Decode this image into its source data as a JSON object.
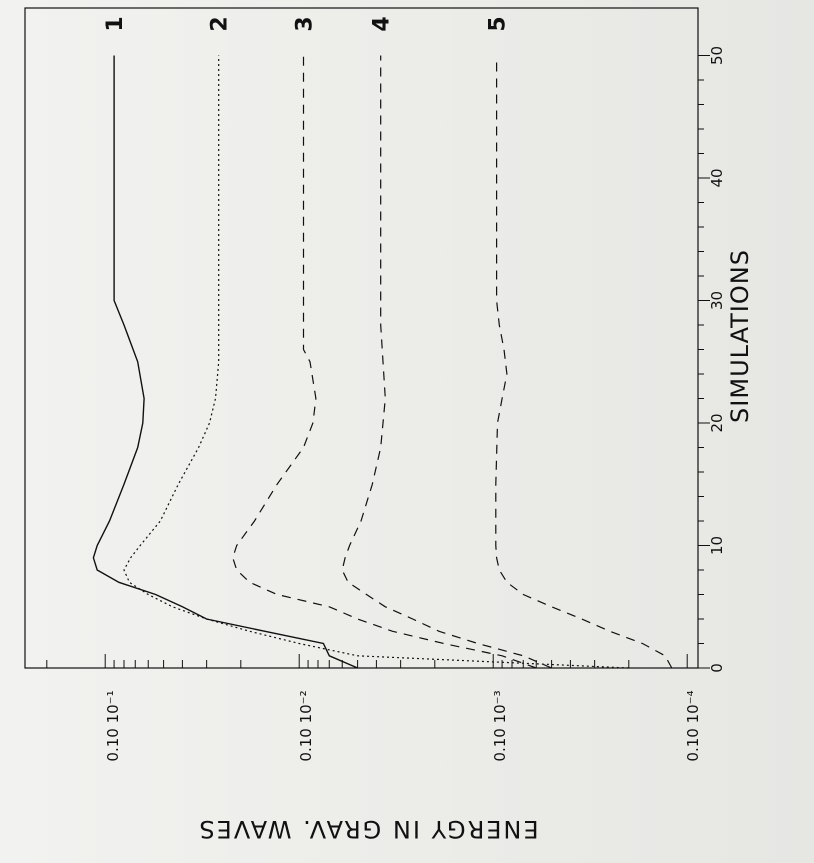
{
  "chart_data": {
    "type": "line",
    "xlabel": "SIMULATIONS",
    "ylabel": "ENERGY IN GRAV. WAVES",
    "xlim": [
      0,
      53
    ],
    "ylim": [
      0.0001,
      0.2
    ],
    "yscale": "log",
    "x_ticks": [
      "0",
      "10",
      "20",
      "30",
      "40",
      "50"
    ],
    "y_ticks": [
      "0.10 10⁻¹",
      "0.10 10⁻²",
      "0.10 10⁻³",
      "0.10 10⁻⁴"
    ],
    "grid": false,
    "orientation": "rotated 90° clockwise",
    "series": [
      {
        "name": "1",
        "style": "solid",
        "x": [
          0,
          1,
          2,
          3,
          4,
          5,
          6,
          7,
          8,
          9,
          10,
          12,
          15,
          18,
          20,
          22,
          25,
          28,
          30,
          50
        ],
        "y": [
          0.005,
          0.007,
          0.0075,
          0.015,
          0.03,
          0.04,
          0.055,
          0.085,
          0.11,
          0.115,
          0.11,
          0.095,
          0.08,
          0.068,
          0.064,
          0.063,
          0.068,
          0.08,
          0.09,
          0.09
        ]
      },
      {
        "name": "2",
        "style": "dotted",
        "x": [
          0,
          1,
          2,
          3,
          4,
          5,
          6,
          7,
          8,
          9,
          10,
          12,
          15,
          18,
          20,
          22,
          25,
          30,
          50
        ],
        "y": [
          0.0002,
          0.005,
          0.01,
          0.018,
          0.03,
          0.045,
          0.06,
          0.075,
          0.08,
          0.074,
          0.066,
          0.052,
          0.042,
          0.033,
          0.029,
          0.027,
          0.026,
          0.026,
          0.026
        ]
      },
      {
        "name": "3",
        "style": "dashed",
        "x": [
          0,
          1,
          2,
          3,
          4,
          5,
          6,
          7,
          8,
          9,
          10,
          12,
          15,
          18,
          20,
          22,
          25,
          26,
          50
        ],
        "y": [
          0.0006,
          0.0009,
          0.0018,
          0.0033,
          0.005,
          0.007,
          0.013,
          0.018,
          0.021,
          0.022,
          0.021,
          0.017,
          0.013,
          0.0095,
          0.0085,
          0.0082,
          0.0088,
          0.0095,
          0.0095
        ]
      },
      {
        "name": "4",
        "style": "dashed",
        "x": [
          0,
          1,
          2,
          3,
          4,
          5,
          6,
          7,
          8,
          9,
          10,
          12,
          15,
          18,
          20,
          22,
          25,
          28,
          50
        ],
        "y": [
          0.0005,
          0.0007,
          0.0012,
          0.0019,
          0.0026,
          0.0036,
          0.0045,
          0.0056,
          0.006,
          0.0058,
          0.0055,
          0.0048,
          0.0042,
          0.0038,
          0.0037,
          0.0036,
          0.0037,
          0.0038,
          0.0038
        ]
      },
      {
        "name": "5",
        "style": "dashed",
        "x": [
          0,
          1,
          2,
          3,
          4,
          5,
          6,
          7,
          8,
          9,
          10,
          15,
          20,
          22,
          24,
          26,
          28,
          30,
          50
        ],
        "y": [
          0.00012,
          0.00013,
          0.00017,
          0.00025,
          0.00035,
          0.0005,
          0.0007,
          0.00085,
          0.00093,
          0.00096,
          0.00097,
          0.00097,
          0.00095,
          0.0009,
          0.00085,
          0.00088,
          0.00093,
          0.00096,
          0.00096
        ]
      }
    ]
  }
}
